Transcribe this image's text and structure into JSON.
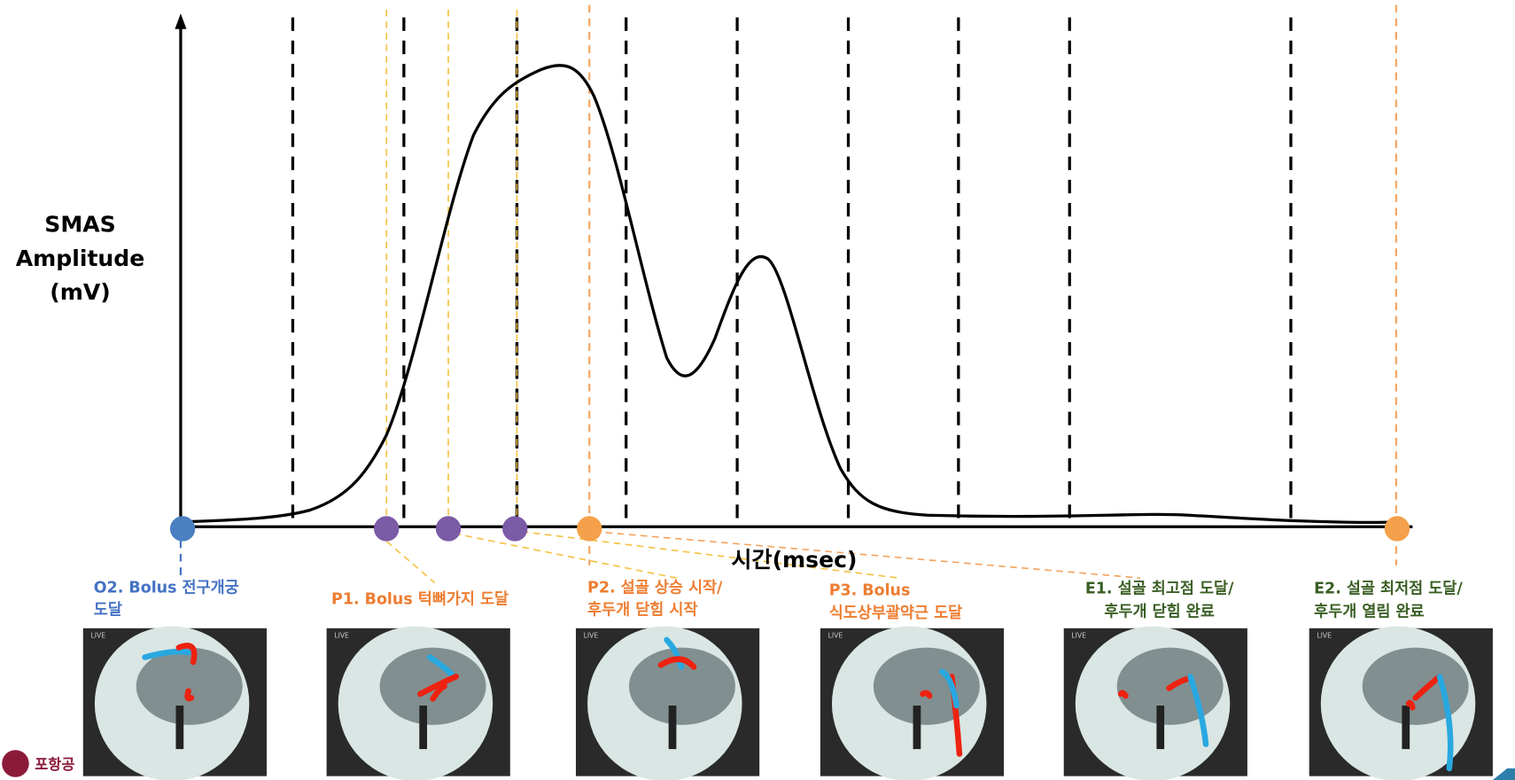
{
  "y_axis_label": [
    "SMAS",
    "Amplitude",
    "(mV)"
  ],
  "x_axis_label": "시간(msec)",
  "events": [
    {
      "label": [
        "O2. Bolus 전구개궁",
        "도달"
      ]
    },
    {
      "label": [
        "P1. Bolus 턱뼈가지 도달"
      ]
    },
    {
      "label": [
        "P2. 설골 상승 시작/",
        "후두개 닫힘 시작"
      ]
    },
    {
      "label": [
        "P3. Bolus",
        "식도상부괄약근 도달"
      ]
    },
    {
      "label": [
        "E1. 설골 최고점 도달/",
        "후두개 닫힘 완료"
      ]
    },
    {
      "label": [
        "E2. 설골 최저점 도달/",
        "후두개 열림 완료"
      ]
    }
  ],
  "panel_tag": "LIVE",
  "logo_text": "포항공"
}
